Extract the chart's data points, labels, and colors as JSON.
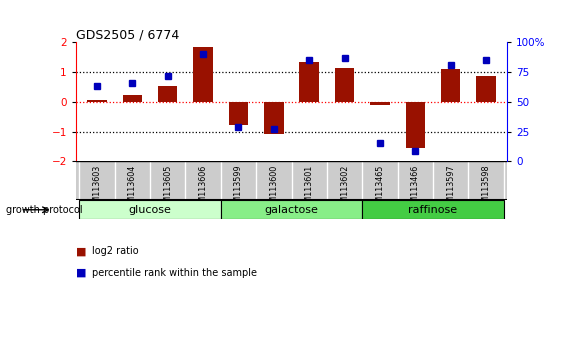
{
  "title": "GDS2505 / 6774",
  "samples": [
    "GSM113603",
    "GSM113604",
    "GSM113605",
    "GSM113606",
    "GSM113599",
    "GSM113600",
    "GSM113601",
    "GSM113602",
    "GSM113465",
    "GSM113466",
    "GSM113597",
    "GSM113598"
  ],
  "log2_ratio": [
    0.07,
    0.22,
    0.55,
    1.85,
    -0.78,
    -1.07,
    1.35,
    1.15,
    -0.12,
    -1.55,
    1.1,
    0.87
  ],
  "percentile_rank": [
    63,
    66,
    72,
    90,
    29,
    27,
    85,
    87,
    15,
    9,
    81,
    85
  ],
  "groups": [
    {
      "name": "glucose",
      "start": 0,
      "end": 4,
      "color": "#ccffcc"
    },
    {
      "name": "galactose",
      "start": 4,
      "end": 8,
      "color": "#88ee88"
    },
    {
      "name": "raffinose",
      "start": 8,
      "end": 12,
      "color": "#44cc44"
    }
  ],
  "bar_color": "#991100",
  "dot_color": "#0000bb",
  "ylim": [
    -2,
    2
  ],
  "y2lim": [
    0,
    100
  ],
  "yticks_left": [
    -2,
    -1,
    0,
    1,
    2
  ],
  "yticks_right": [
    0,
    25,
    50,
    75,
    100
  ],
  "hline_dashed_black": [
    -1,
    1
  ],
  "hline_dashed_red": 0,
  "label_bg": "#cccccc",
  "bar_width": 0.55
}
